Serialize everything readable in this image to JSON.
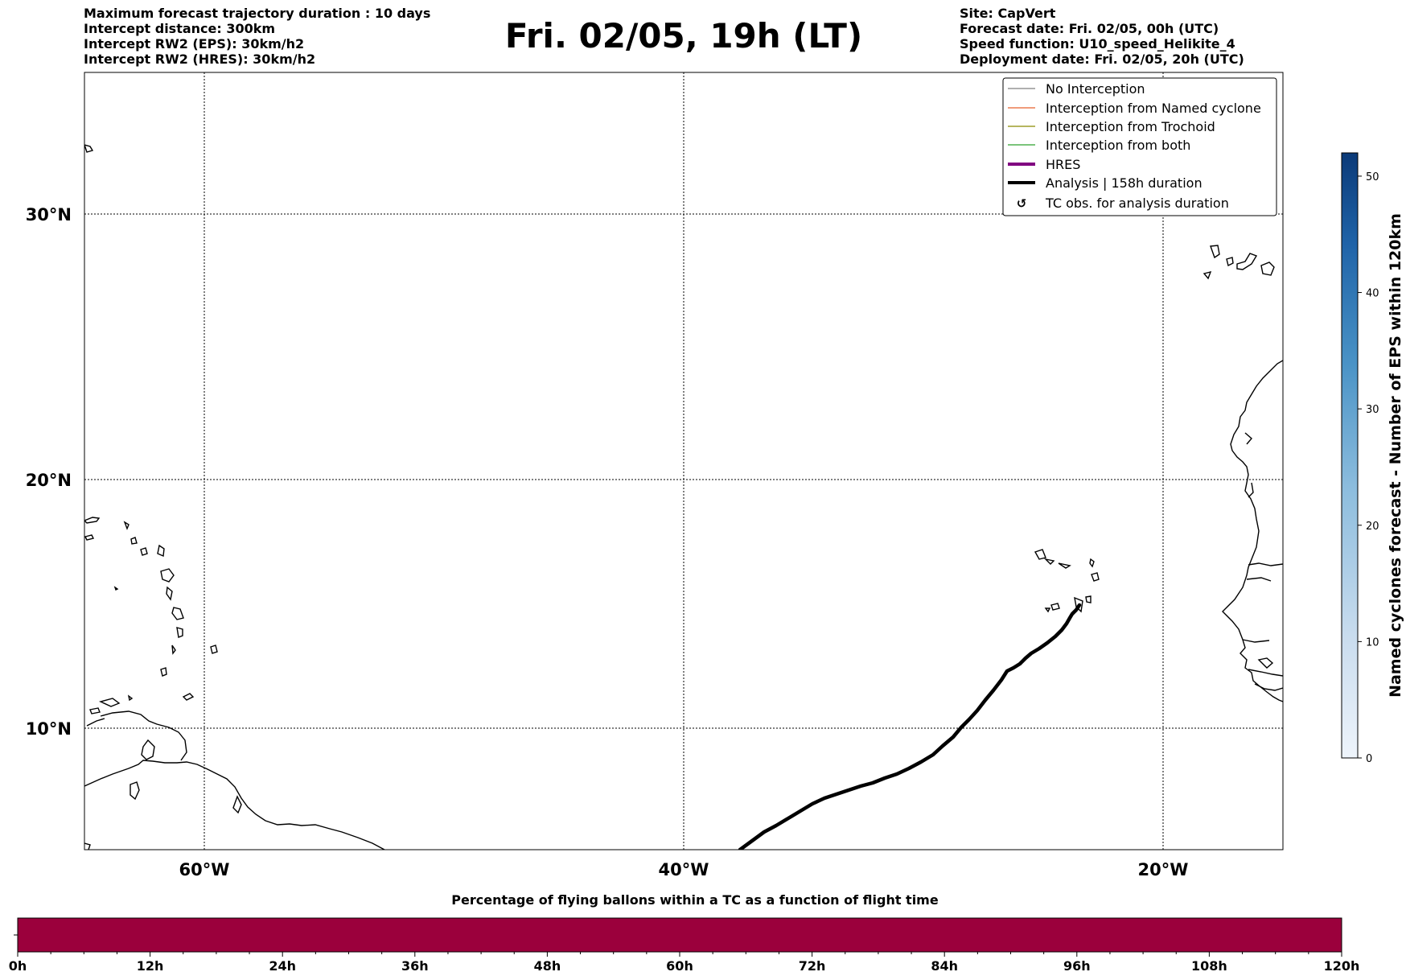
{
  "header": {
    "left_lines": [
      "Maximum forecast trajectory duration : 10 days",
      "Intercept distance: 300km",
      "Intercept RW2 (EPS):  30km/h2",
      "Intercept RW2 (HRES): 30km/h2"
    ],
    "title": "Fri. 02/05, 19h (LT)",
    "right_lines": [
      "Site: CapVert",
      "Forecast date: Fri. 02/05, 00h (UTC)",
      "Speed function: U10_speed_Helikite_4",
      "Deployment date: Fri. 02/05, 20h (UTC)"
    ]
  },
  "map": {
    "lon_labels": [
      "60°W",
      "40°W",
      "20°W"
    ],
    "lat_labels": [
      "30°N",
      "20°N",
      "10°N"
    ],
    "extent": {
      "lon": [
        -65,
        -15
      ],
      "lat": [
        5.4,
        34.8
      ]
    },
    "legend": [
      {
        "label": "No Interception",
        "color": "#7f7f7f",
        "style": "thin"
      },
      {
        "label": "Interception from Named cyclone",
        "color": "#e8602c",
        "style": "thin"
      },
      {
        "label": "Interception from Trochoid",
        "color": "#8b8b00",
        "style": "thin"
      },
      {
        "label": "Interception from both",
        "color": "#2ca02c",
        "style": "thin"
      },
      {
        "label": "HRES",
        "color": "#800080",
        "style": "thick"
      },
      {
        "label": "Analysis | 158h duration",
        "color": "#000000",
        "style": "thick"
      },
      {
        "label": "TC obs. for analysis duration",
        "color": "#000000",
        "style": "marker"
      }
    ]
  },
  "colorbar": {
    "label": "Named cyclones forecast - Number of EPS within 120km",
    "ticks": [
      "0",
      "10",
      "20",
      "30",
      "40",
      "50"
    ],
    "range": [
      0,
      52
    ],
    "color_low": "#eef4fb",
    "color_high": "#0b3a78"
  },
  "timebar": {
    "title": "Percentage of flying ballons within a TC as a function of flight time",
    "ticks": [
      "0h",
      "12h",
      "24h",
      "36h",
      "48h",
      "60h",
      "72h",
      "84h",
      "96h",
      "108h",
      "120h"
    ],
    "fill_color": "#9b003c"
  }
}
